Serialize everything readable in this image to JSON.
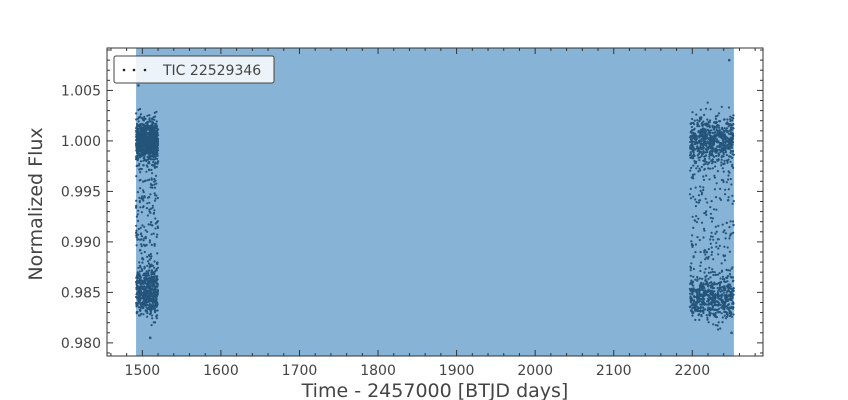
{
  "chart_data": {
    "type": "scatter",
    "xlabel": "Time - 2457000 [BTJD days]",
    "ylabel": "Normalized Flux",
    "xlim": [
      1455,
      2290
    ],
    "ylim": [
      0.9787,
      1.0092
    ],
    "x_ticks": [
      1500,
      1600,
      1700,
      1800,
      1900,
      2000,
      2100,
      2200
    ],
    "x_tick_labels": [
      "1500",
      "1600",
      "1700",
      "1800",
      "1900",
      "2000",
      "2100",
      "2200"
    ],
    "y_ticks": [
      0.98,
      0.985,
      0.99,
      0.995,
      1.0,
      1.005
    ],
    "y_tick_labels": [
      "0.980",
      "0.985",
      "0.990",
      "0.995",
      "1.000",
      "1.005"
    ],
    "grid": false,
    "legend": {
      "position": "top-left",
      "entries": [
        {
          "label": "TIC 22529346",
          "marker": "dots"
        }
      ]
    },
    "shaded_span": {
      "x_start": 1492,
      "x_end": 2253,
      "color": "#86b3d6"
    },
    "series": [
      {
        "name": "TIC 22529346",
        "color": "#24547a",
        "clusters": [
          {
            "x_start": 1492,
            "x_end": 1520,
            "y_center": 1.0,
            "y_spread": 0.0022,
            "weight": 0.32
          },
          {
            "x_start": 1492,
            "x_end": 1520,
            "y_center": 0.985,
            "y_spread": 0.0025,
            "weight": 0.18
          },
          {
            "x_start": 1492,
            "x_end": 1520,
            "y_uniform": [
              0.983,
              0.999
            ],
            "weight": 0.1
          },
          {
            "x_start": 2197,
            "x_end": 2253,
            "y_center": 1.0,
            "y_spread": 0.0025,
            "weight": 0.25
          },
          {
            "x_start": 2197,
            "x_end": 2253,
            "y_center": 0.9845,
            "y_spread": 0.0025,
            "weight": 0.2
          },
          {
            "x_start": 2197,
            "x_end": 2253,
            "y_uniform": [
              0.983,
              0.999
            ],
            "weight": 0.1
          }
        ],
        "outliers": [
          {
            "x": 2247,
            "y": 1.008
          },
          {
            "x": 1495,
            "y": 1.0055
          },
          {
            "x": 2250,
            "y": 0.981
          },
          {
            "x": 1510,
            "y": 0.9805
          }
        ]
      }
    ]
  }
}
